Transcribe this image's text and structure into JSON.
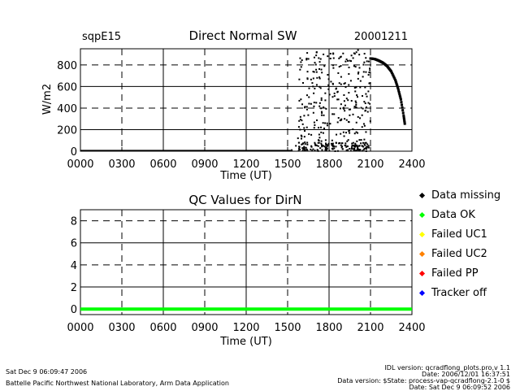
{
  "chart_data": [
    {
      "type": "scatter",
      "station": "sqpE15",
      "title": "Direct Normal SW",
      "date": "20001211",
      "xlabel": "Time (UT)",
      "ylabel": "W/m2",
      "xlim": [
        0,
        2400
      ],
      "ylim": [
        0,
        950
      ],
      "x_ticks": [
        "0000",
        "0300",
        "0600",
        "0900",
        "1200",
        "1500",
        "1800",
        "2100",
        "2400"
      ],
      "y_ticks": [
        "0",
        "200",
        "400",
        "600",
        "800"
      ],
      "grid": "solid at 600/1200/1800 and 200/600; dashed elsewhere",
      "series": [
        {
          "color": "#000000",
          "baseline": {
            "x": [
              0,
              1530
            ],
            "y": 5
          },
          "rise": {
            "x": [
              1530,
              1560,
              1575,
              1590,
              1610
            ],
            "y": [
              10,
              50,
              120,
              200,
              250
            ]
          },
          "clear_sky_envelope": {
            "x": [
              2100,
              2130,
              2160,
              2190,
              2220,
              2250,
              2280,
              2300,
              2320,
              2340,
              2350
            ],
            "y": [
              860,
              855,
              840,
              820,
              790,
              740,
              660,
              580,
              480,
              330,
              240
            ]
          },
          "scatter_region": {
            "x": [
              1580,
              2100
            ],
            "y": [
              0,
              940
            ]
          }
        }
      ]
    },
    {
      "type": "line",
      "title": "QC Values for DirN",
      "xlabel": "Time (UT)",
      "ylabel": "",
      "xlim": [
        0,
        2400
      ],
      "ylim": [
        -0.5,
        9
      ],
      "x_ticks": [
        "0000",
        "0300",
        "0600",
        "0900",
        "1200",
        "1500",
        "1800",
        "2100",
        "2400"
      ],
      "y_ticks": [
        "0",
        "2",
        "4",
        "6",
        "8"
      ],
      "series": [
        {
          "x": [
            0,
            2400
          ],
          "y": [
            0,
            0
          ],
          "color": "#00ff00"
        }
      ]
    }
  ],
  "legend": [
    {
      "label": "Data missing",
      "color": "#000000"
    },
    {
      "label": "Data OK",
      "color": "#00ff00"
    },
    {
      "label": "Failed UC1",
      "color": "#ffff00"
    },
    {
      "label": "Failed UC2",
      "color": "#ff8000"
    },
    {
      "label": "Failed PP",
      "color": "#ff0000"
    },
    {
      "label": "Tracker off",
      "color": "#0000ff"
    }
  ],
  "footer": {
    "left_line1": "Sat Dec  9 06:09:47 2006",
    "left_line2": "Battelle Pacific Northwest National Laboratory, Arm Data Application",
    "right_line1": "IDL version: qcradflong_plots.pro,v 1.1",
    "right_line2": "Date: 2006/12/01 16:37:51",
    "right_line3": "Data version: $State: process-vap-qcradflong-2.1-0 $",
    "right_line4": "Date: Sat Dec  9 06:09:52 2006"
  }
}
